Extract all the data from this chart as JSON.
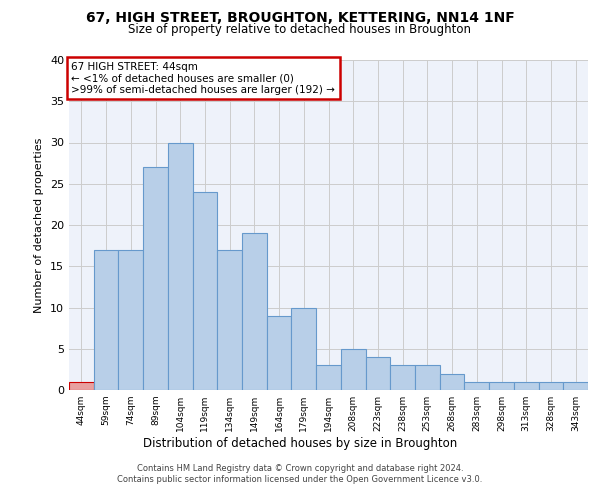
{
  "title1": "67, HIGH STREET, BROUGHTON, KETTERING, NN14 1NF",
  "title2": "Size of property relative to detached houses in Broughton",
  "xlabel": "Distribution of detached houses by size in Broughton",
  "ylabel": "Number of detached properties",
  "categories": [
    "44sqm",
    "59sqm",
    "74sqm",
    "89sqm",
    "104sqm",
    "119sqm",
    "134sqm",
    "149sqm",
    "164sqm",
    "179sqm",
    "194sqm",
    "208sqm",
    "223sqm",
    "238sqm",
    "253sqm",
    "268sqm",
    "283sqm",
    "298sqm",
    "313sqm",
    "328sqm",
    "343sqm"
  ],
  "values": [
    1,
    17,
    17,
    27,
    30,
    24,
    17,
    19,
    9,
    10,
    3,
    5,
    4,
    3,
    3,
    2,
    1,
    1,
    1,
    1,
    1
  ],
  "bar_color": "#b8cfe8",
  "bar_edge_color": "#6699cc",
  "highlight_bar_index": 0,
  "highlight_bar_color": "#e8a0a0",
  "highlight_bar_edge_color": "#cc0000",
  "annotation_text": "67 HIGH STREET: 44sqm\n← <1% of detached houses are smaller (0)\n>99% of semi-detached houses are larger (192) →",
  "annotation_box_color": "#ffffff",
  "annotation_box_edge_color": "#cc0000",
  "ylim": [
    0,
    40
  ],
  "yticks": [
    0,
    5,
    10,
    15,
    20,
    25,
    30,
    35,
    40
  ],
  "grid_color": "#cccccc",
  "bg_color": "#eef2fa",
  "footer1": "Contains HM Land Registry data © Crown copyright and database right 2024.",
  "footer2": "Contains public sector information licensed under the Open Government Licence v3.0."
}
